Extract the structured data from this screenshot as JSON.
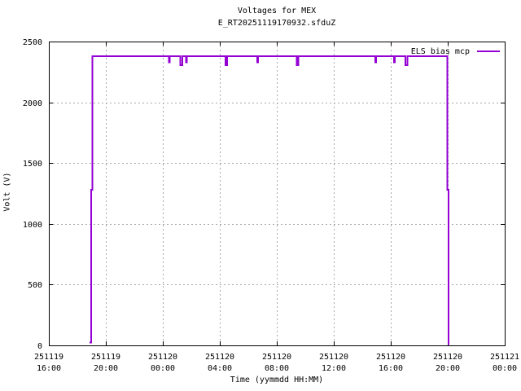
{
  "page": {
    "background": "#ffffff",
    "text_color": "#000000"
  },
  "chart_data": {
    "type": "line",
    "title": "Voltages for MEX",
    "subtitle": "E_RT20251119170932.sfduZ",
    "xlabel": "Time (yymmdd HH:MM)",
    "ylabel": "Volt (V)",
    "grid": true,
    "grid_color": "#a8a8a8",
    "border_color": "#000000",
    "legend": {
      "position": "top-right-inside",
      "entries": [
        {
          "label": "ELS bias mcp",
          "color": "#9400d3"
        }
      ]
    },
    "x_axis": {
      "unit": "hours since 251119 16:00",
      "range_hours": [
        0,
        32
      ],
      "tick_interval_hours": 4,
      "ticks": [
        {
          "hours": 0,
          "date": "251119",
          "time": "16:00"
        },
        {
          "hours": 4,
          "date": "251119",
          "time": "20:00"
        },
        {
          "hours": 8,
          "date": "251120",
          "time": "00:00"
        },
        {
          "hours": 12,
          "date": "251120",
          "time": "04:00"
        },
        {
          "hours": 16,
          "date": "251120",
          "time": "08:00"
        },
        {
          "hours": 20,
          "date": "251120",
          "time": "12:00"
        },
        {
          "hours": 24,
          "date": "251120",
          "time": "16:00"
        },
        {
          "hours": 28,
          "date": "251120",
          "time": "20:00"
        },
        {
          "hours": 32,
          "date": "251121",
          "time": "00:00"
        }
      ]
    },
    "y_axis": {
      "range": [
        0,
        2500
      ],
      "ticks": [
        0,
        500,
        1000,
        1500,
        2000,
        2500
      ]
    },
    "series": [
      {
        "name": "ELS bias mcp",
        "color": "#9400d3",
        "flat_level_v": 2380,
        "step_level_v": 1280,
        "points": [
          [
            2.86,
            25
          ],
          [
            2.97,
            25
          ],
          [
            2.97,
            1280
          ],
          [
            3.06,
            1280
          ],
          [
            3.06,
            2380
          ],
          [
            8.42,
            2380
          ],
          [
            8.42,
            2330
          ],
          [
            8.48,
            2330
          ],
          [
            8.48,
            2380
          ],
          [
            9.24,
            2380
          ],
          [
            9.24,
            2305
          ],
          [
            9.36,
            2305
          ],
          [
            9.36,
            2380
          ],
          [
            9.62,
            2380
          ],
          [
            9.62,
            2330
          ],
          [
            9.68,
            2330
          ],
          [
            9.68,
            2380
          ],
          [
            12.39,
            2380
          ],
          [
            12.39,
            2305
          ],
          [
            12.51,
            2305
          ],
          [
            12.51,
            2380
          ],
          [
            14.62,
            2380
          ],
          [
            14.62,
            2330
          ],
          [
            14.68,
            2330
          ],
          [
            14.68,
            2380
          ],
          [
            17.39,
            2380
          ],
          [
            17.39,
            2305
          ],
          [
            17.51,
            2305
          ],
          [
            17.51,
            2380
          ],
          [
            22.92,
            2380
          ],
          [
            22.92,
            2330
          ],
          [
            22.98,
            2330
          ],
          [
            22.98,
            2380
          ],
          [
            24.22,
            2380
          ],
          [
            24.22,
            2330
          ],
          [
            24.28,
            2330
          ],
          [
            24.28,
            2380
          ],
          [
            25.04,
            2380
          ],
          [
            25.04,
            2305
          ],
          [
            25.16,
            2305
          ],
          [
            25.16,
            2380
          ],
          [
            27.97,
            2380
          ],
          [
            27.97,
            1280
          ],
          [
            28.06,
            1280
          ],
          [
            28.06,
            5
          ]
        ]
      }
    ]
  }
}
